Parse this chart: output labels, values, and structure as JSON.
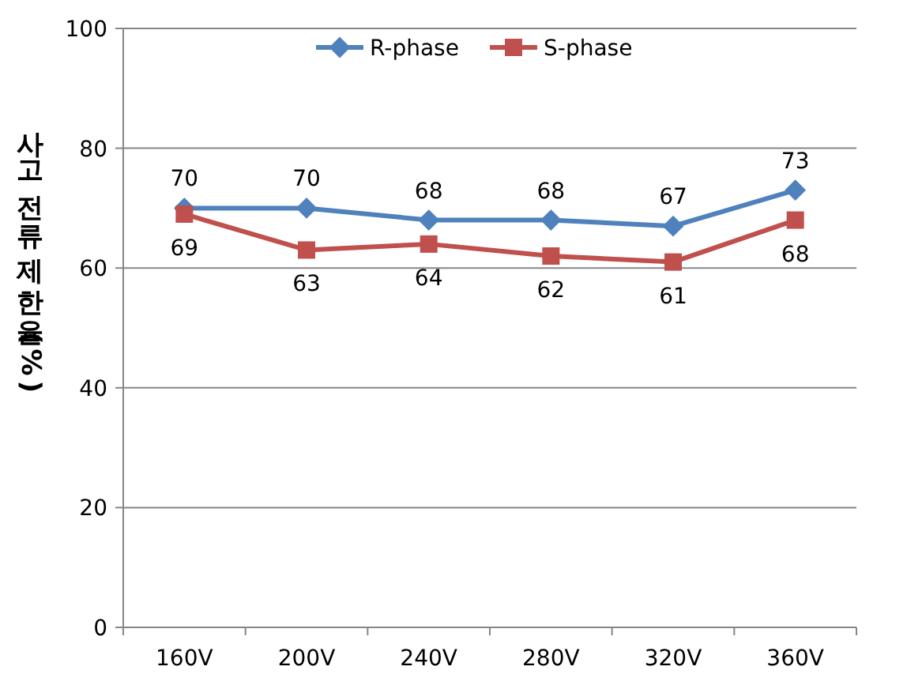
{
  "chart_data": {
    "type": "line",
    "ylabel": "사고전류제한율(%)",
    "categories": [
      "160V",
      "200V",
      "240V",
      "280V",
      "320V",
      "360V"
    ],
    "series": [
      {
        "name": "R-phase",
        "color": "#4f81bd",
        "marker": "diamond",
        "values": [
          70,
          70,
          68,
          68,
          67,
          73
        ]
      },
      {
        "name": "S-phase",
        "color": "#c0504d",
        "marker": "square",
        "values": [
          69,
          63,
          64,
          62,
          61,
          68
        ]
      }
    ],
    "ylim": [
      0,
      100
    ],
    "yticks": [
      0,
      20,
      40,
      60,
      80,
      100
    ],
    "grid": "y",
    "legend": "top",
    "data_labels": true
  }
}
